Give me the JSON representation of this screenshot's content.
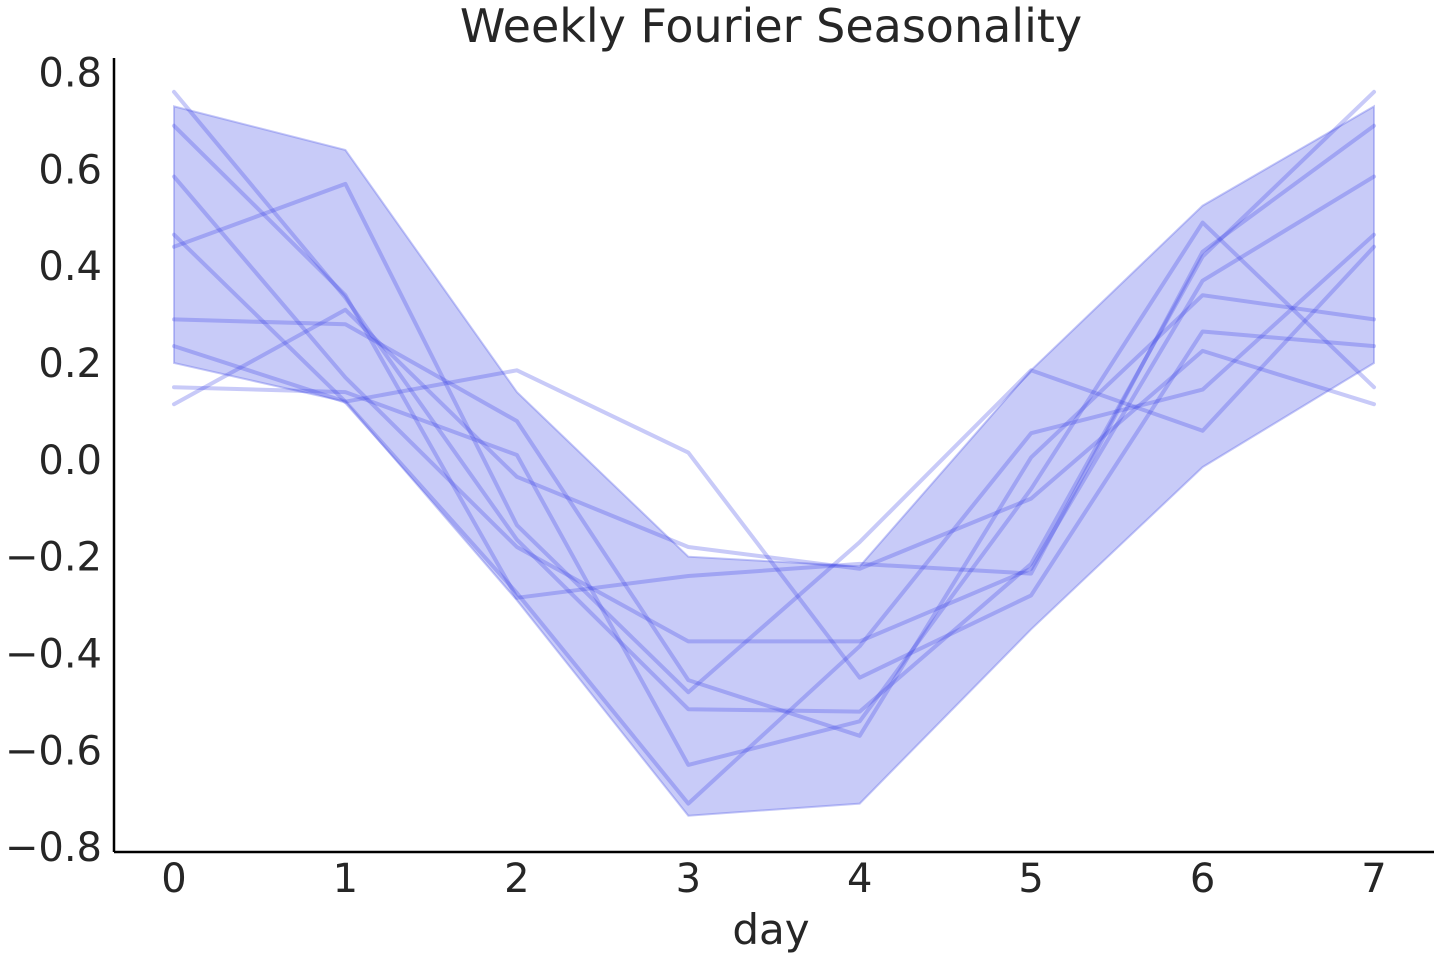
{
  "chart_data": {
    "type": "line",
    "title": "Weekly Fourier Seasonality",
    "xlabel": "day",
    "ylabel": "",
    "x": [
      0,
      1,
      2,
      3,
      4,
      5,
      6,
      7
    ],
    "xticks": [
      "0",
      "1",
      "2",
      "3",
      "4",
      "5",
      "6",
      "7"
    ],
    "yticks": [
      "0.8",
      "0.6",
      "0.4",
      "0.2",
      "0.0",
      "−0.2",
      "−0.4",
      "−0.6",
      "−0.8"
    ],
    "ytick_values": [
      0.8,
      0.6,
      0.4,
      0.2,
      0.0,
      -0.2,
      -0.4,
      -0.6,
      -0.8
    ],
    "xlim": [
      -0.35,
      7.35
    ],
    "ylim": [
      -0.81,
      0.83
    ],
    "grid": false,
    "band": {
      "lower": [
        0.2,
        0.12,
        -0.29,
        -0.735,
        -0.71,
        -0.35,
        -0.015,
        0.2
      ],
      "upper": [
        0.73,
        0.64,
        0.14,
        -0.2,
        -0.22,
        0.185,
        0.525,
        0.73
      ]
    },
    "series": [
      {
        "values": [
          0.76,
          0.335,
          -0.165,
          -0.515,
          -0.52,
          -0.215,
          0.42,
          0.76
        ]
      },
      {
        "values": [
          0.69,
          0.34,
          -0.285,
          -0.24,
          -0.215,
          -0.235,
          0.43,
          0.69
        ]
      },
      {
        "values": [
          0.585,
          0.17,
          -0.18,
          -0.375,
          -0.375,
          -0.225,
          0.37,
          0.585
        ]
      },
      {
        "values": [
          0.465,
          0.12,
          -0.275,
          -0.71,
          -0.385,
          0.055,
          0.145,
          0.465
        ]
      },
      {
        "values": [
          0.44,
          0.57,
          -0.135,
          -0.48,
          -0.17,
          0.185,
          0.06,
          0.44
        ]
      },
      {
        "values": [
          0.29,
          0.28,
          0.08,
          -0.455,
          -0.57,
          0.005,
          0.34,
          0.29
        ]
      },
      {
        "values": [
          0.235,
          0.12,
          0.185,
          0.015,
          -0.45,
          -0.28,
          0.265,
          0.235
        ]
      },
      {
        "values": [
          0.15,
          0.14,
          0.01,
          -0.63,
          -0.54,
          -0.06,
          0.49,
          0.15
        ]
      },
      {
        "values": [
          0.115,
          0.31,
          -0.035,
          -0.18,
          -0.225,
          -0.08,
          0.225,
          0.115
        ]
      }
    ],
    "colors": {
      "band_fill": "#9aa0f2",
      "band_stroke": "#5a60e8",
      "line": "#3a40e6",
      "text": "#262626",
      "spine": "#000000"
    }
  }
}
